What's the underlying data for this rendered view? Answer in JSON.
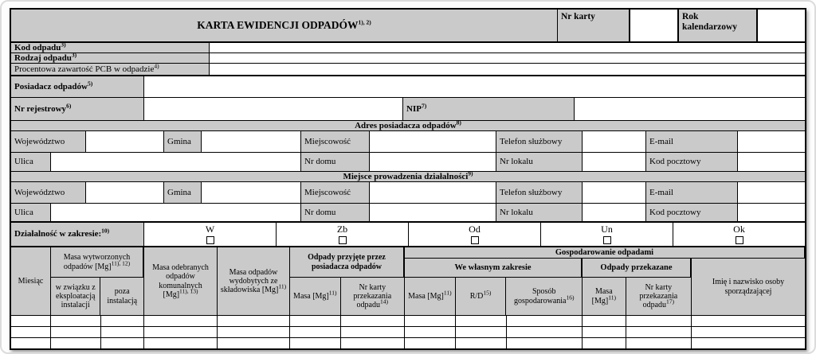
{
  "header": {
    "title": "KARTA EWIDENCJI ODPADÓW",
    "title_sup": "1), 2)",
    "nr_karty_label": "Nr karty",
    "nr_karty_value": "",
    "rok_label": "Rok kalendarzowy",
    "rok_value": ""
  },
  "rows": {
    "kod": {
      "label": "Kod odpadu",
      "sup": "3)",
      "value": ""
    },
    "rodzaj": {
      "label": "Rodzaj odpadu",
      "sup": "3)",
      "value": ""
    },
    "pcb": {
      "label": "Procentowa zawartość PCB w odpadzie",
      "sup": "4)",
      "value": ""
    },
    "posiadacz": {
      "label": "Posiadacz odpadów",
      "sup": "5)",
      "value": ""
    },
    "rejestrowy": {
      "label": "Nr rejestrowy",
      "sup": "6)",
      "value": ""
    },
    "nip": {
      "label": "NIP",
      "sup": "7)",
      "value": ""
    }
  },
  "sections": [
    {
      "title": "Adres posiadacza odpadów",
      "sup": "8)"
    },
    {
      "title": "Miejsce prowadzenia działalności",
      "sup": "9)"
    }
  ],
  "address_labels": {
    "wojewodztwo": "Województwo",
    "gmina": "Gmina",
    "miejscowosc": "Miejscowość",
    "telefon": "Telefon służbowy",
    "email": "E-mail",
    "ulica": "Ulica",
    "nr_domu": "Nr domu",
    "nr_lokalu": "Nr lokalu",
    "kod_pocztowy": "Kod pocztowy"
  },
  "dzialalnosc": {
    "label": "Działalność w zakresie:",
    "sup": "10)",
    "options": [
      "W",
      "Zb",
      "Od",
      "Un",
      "Ok"
    ],
    "checked": [
      false,
      false,
      false,
      false,
      false
    ]
  },
  "table": {
    "gospodarowanie": "Gospodarowanie odpadami",
    "miesiac": "Miesiąc",
    "wytworzone_label": "Masa wytworzonych odpadów [Mg]",
    "wytworzone_sup": "11), 12)",
    "wytworzone_sub1": "w związku z eksploatacją instalacji",
    "wytworzone_sub2": "poza instalacją",
    "odebrane_label": "Masa odebranych odpadów komunalnych [Mg]",
    "odebrane_sup": "11), 13)",
    "wydobyte_label": "Masa odpadów wydobytych ze składowiska [Mg]",
    "wydobyte_sup": "11)",
    "przyjete": "Odpady przyjęte przez posiadacza odpadów",
    "masa_label": "Masa [Mg]",
    "masa_sup": "11)",
    "nr_karty_przyjete_label": "Nr karty przekazania odpadu",
    "nr_karty_przyjete_sup": "14)",
    "wlasnym": "We własnym zakresie",
    "rd_label": "R/D",
    "rd_sup": "15)",
    "sposob_label": "Sposób gospodarowania",
    "sposob_sup": "16)",
    "przekazane": "Odpady przekazane",
    "nr_karty_przekazane_label": "Nr karty przekazania odpadu",
    "nr_karty_przekazane_sup": "17)",
    "imie": "Imię i nazwisko osoby sporządzającej",
    "data_row_count": 3
  },
  "colors": {
    "cell_gray": "#cacaca",
    "border": "#000000"
  }
}
